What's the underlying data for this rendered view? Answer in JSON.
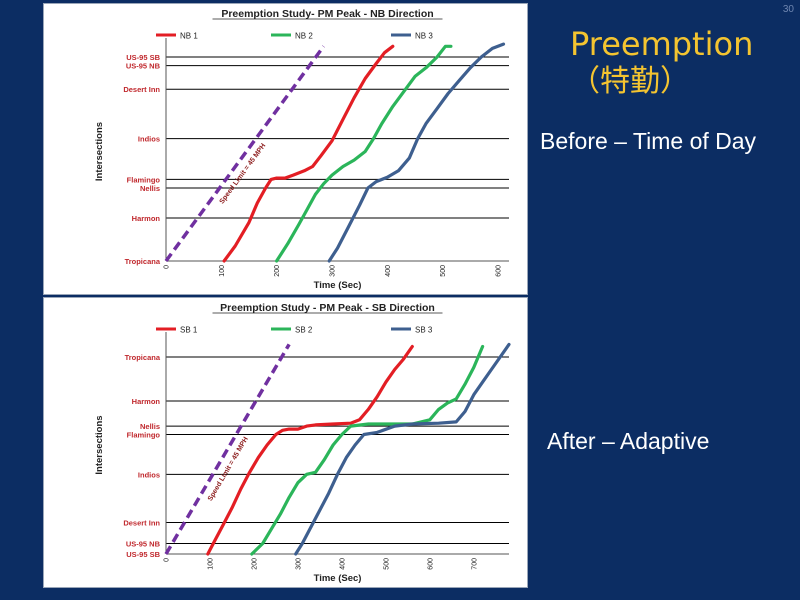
{
  "slide": {
    "number": "30",
    "title": "Preemption",
    "title_sub": "（特勤）",
    "label_before": "Before – Time of Day",
    "label_after": "After – Adaptive"
  },
  "colors": {
    "background": "#0c2d63",
    "title": "#f4c430",
    "red": "#e31e24",
    "green": "#2bb55a",
    "blue": "#3e5f8f",
    "purple": "#7030a0",
    "label": "#c0282d"
  },
  "chart_data": [
    {
      "type": "line",
      "title": "Preemption Study- PM Peak - NB Direction",
      "xlabel": "Time (Sec)",
      "ylabel": "Intersections",
      "xlim": [
        0,
        620
      ],
      "x_ticks": [
        0,
        100,
        200,
        300,
        400,
        500,
        600
      ],
      "y_tick_labels": [
        "Tropicana",
        "Harmon",
        "Nellis",
        "Flamingo",
        "Indios",
        "Desert Inn",
        "US-95 NB",
        "US-95 SB"
      ],
      "y_tick_values": [
        0,
        1.0,
        1.7,
        1.9,
        2.85,
        4.0,
        4.55,
        4.75
      ],
      "ylim": [
        0,
        5.1
      ],
      "legend_position": "top",
      "annotation": "Speed Limit = 45 MPH",
      "speed_line": {
        "x": [
          0,
          285
        ],
        "y": [
          0,
          5.0
        ]
      },
      "series": [
        {
          "name": "NB 1",
          "color": "#e31e24",
          "x": [
            105,
            125,
            150,
            165,
            180,
            190,
            200,
            215,
            230,
            250,
            265,
            280,
            300,
            320,
            340,
            360,
            380,
            395,
            410
          ],
          "y": [
            0,
            0.35,
            0.9,
            1.35,
            1.7,
            1.9,
            1.93,
            1.93,
            2.0,
            2.1,
            2.2,
            2.45,
            2.8,
            3.3,
            3.8,
            4.25,
            4.6,
            4.85,
            5.0
          ]
        },
        {
          "name": "NB 2",
          "color": "#2bb55a",
          "x": [
            200,
            220,
            240,
            255,
            270,
            285,
            300,
            320,
            340,
            360,
            375,
            390,
            410,
            430,
            450,
            470,
            490,
            505,
            515
          ],
          "y": [
            0,
            0.4,
            0.85,
            1.2,
            1.55,
            1.8,
            2.0,
            2.2,
            2.35,
            2.55,
            2.85,
            3.2,
            3.6,
            3.95,
            4.3,
            4.5,
            4.75,
            5.0,
            5.0
          ]
        },
        {
          "name": "NB 3",
          "color": "#3e5f8f",
          "x": [
            295,
            310,
            330,
            350,
            365,
            380,
            400,
            420,
            440,
            455,
            470,
            490,
            510,
            530,
            550,
            570,
            590,
            610
          ],
          "y": [
            0,
            0.3,
            0.8,
            1.3,
            1.7,
            1.85,
            1.95,
            2.1,
            2.4,
            2.85,
            3.2,
            3.55,
            3.9,
            4.2,
            4.5,
            4.75,
            4.95,
            5.05
          ]
        }
      ]
    },
    {
      "type": "line",
      "title": "Preemption Study - PM Peak - SB Direction",
      "xlabel": "Time (Sec)",
      "ylabel": "Intersections",
      "xlim": [
        0,
        780
      ],
      "x_ticks": [
        0,
        100,
        200,
        300,
        400,
        500,
        600,
        700
      ],
      "y_tick_labels": [
        "US-95 SB",
        "US-95 NB",
        "Desert Inn",
        "Indios",
        "Flamingo",
        "Nellis",
        "Harmon",
        "Tropicana"
      ],
      "y_tick_values": [
        0,
        0.25,
        0.75,
        1.9,
        2.85,
        3.05,
        3.65,
        4.7
      ],
      "ylim": [
        0,
        5.2
      ],
      "legend_position": "top",
      "annotation": "Speed Limit = 45 MPH",
      "speed_line": {
        "x": [
          0,
          280
        ],
        "y": [
          0,
          5.0
        ]
      },
      "series": [
        {
          "name": "SB 1",
          "color": "#e31e24",
          "x": [
            95,
            110,
            130,
            150,
            170,
            190,
            210,
            230,
            250,
            265,
            280,
            300,
            320,
            340,
            380,
            420,
            440,
            460,
            480,
            500,
            520,
            540,
            560
          ],
          "y": [
            0,
            0.3,
            0.7,
            1.1,
            1.55,
            1.95,
            2.3,
            2.6,
            2.85,
            2.95,
            2.98,
            2.98,
            3.05,
            3.08,
            3.1,
            3.12,
            3.2,
            3.45,
            3.75,
            4.1,
            4.4,
            4.65,
            4.95
          ]
        },
        {
          "name": "SB 2",
          "color": "#2bb55a",
          "x": [
            195,
            220,
            240,
            260,
            280,
            300,
            320,
            340,
            360,
            380,
            400,
            420,
            460,
            500,
            560,
            600,
            620,
            640,
            660,
            680,
            700,
            720
          ],
          "y": [
            0,
            0.25,
            0.6,
            0.95,
            1.35,
            1.7,
            1.9,
            1.95,
            2.25,
            2.6,
            2.85,
            3.05,
            3.1,
            3.1,
            3.1,
            3.2,
            3.45,
            3.6,
            3.7,
            4.05,
            4.45,
            4.95
          ]
        },
        {
          "name": "SB 3",
          "color": "#3e5f8f",
          "x": [
            295,
            310,
            330,
            350,
            370,
            390,
            410,
            430,
            450,
            480,
            520,
            560,
            620,
            660,
            680,
            700,
            720,
            740,
            760,
            780
          ],
          "y": [
            0,
            0.25,
            0.65,
            1.05,
            1.45,
            1.9,
            2.3,
            2.6,
            2.85,
            2.9,
            3.05,
            3.1,
            3.12,
            3.15,
            3.4,
            3.8,
            4.1,
            4.4,
            4.7,
            5.0
          ]
        }
      ]
    }
  ]
}
